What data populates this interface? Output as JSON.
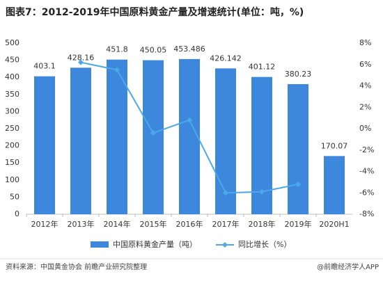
{
  "chart_data": {
    "type": "bar",
    "title": "图表7：2012-2019年中国原料黄金产量及增速统计(单位：吨，%)",
    "categories": [
      "2012年",
      "2013年",
      "2014年",
      "2015年",
      "2016年",
      "2017年",
      "2018年",
      "2019年",
      "2020H1"
    ],
    "series": [
      {
        "name": "中国原料黄金产量（吨）",
        "color": "#3d87dc",
        "type": "bar",
        "values": [
          403.1,
          428.16,
          451.8,
          450.05,
          453.486,
          426.142,
          401.12,
          380.23,
          170.07
        ]
      },
      {
        "name": "同比增长（%）",
        "color": "#4aa9ea",
        "type": "line",
        "axis": "y2",
        "values": [
          null,
          6.2,
          5.5,
          -0.4,
          0.8,
          -6.0,
          -5.9,
          -5.2,
          null
        ]
      }
    ],
    "ylim": [
      0,
      500
    ],
    "yticks": [
      0,
      50,
      100,
      150,
      200,
      250,
      300,
      350,
      400,
      450,
      500
    ],
    "y2lim": [
      -8,
      8
    ],
    "y2ticks": [
      {
        "value": -8,
        "label": "-8%"
      },
      {
        "value": -6,
        "label": "-6%"
      },
      {
        "value": -4,
        "label": "-4%"
      },
      {
        "value": -2,
        "label": "-2%"
      },
      {
        "value": 0,
        "label": "0%"
      },
      {
        "value": 2,
        "label": "2%"
      },
      {
        "value": 4,
        "label": "4%"
      },
      {
        "value": 6,
        "label": "6%"
      },
      {
        "value": 8,
        "label": "8%"
      }
    ],
    "grid": false,
    "source": "资料来源：中国黄金协会 前瞻产业研究院整理",
    "credit": "@前瞻经济学人APP"
  }
}
